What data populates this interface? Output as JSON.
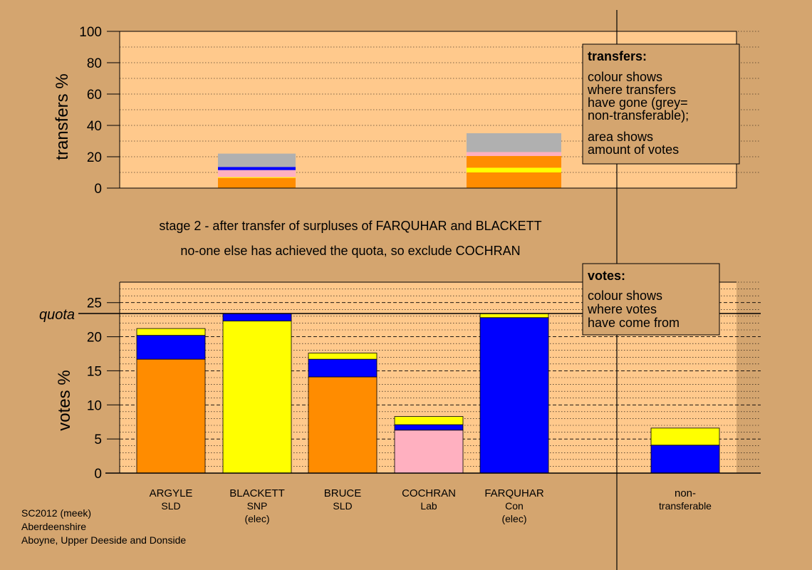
{
  "colors": {
    "background": "#d4a56f",
    "plot_bg": "#ffc98c",
    "orange": "#ff8c00",
    "yellow": "#ffff00",
    "blue": "#0000ff",
    "pink": "#ffb0c0",
    "grey": "#b0b0b0"
  },
  "stage_text": {
    "line1": "stage 2 - after transfer of surpluses of FARQUHAR and BLACKETT",
    "line2": "no-one else has achieved the quota, so exclude COCHRAN"
  },
  "footer": {
    "line1": "SC2012 (meek)",
    "line2": "Aberdeenshire",
    "line3": "Aboyne, Upper Deeside and Donside"
  },
  "transfers_legend": {
    "title": "transfers:",
    "lines": [
      "colour shows",
      "where transfers",
      "have gone (grey=",
      "non-transferable);",
      "area shows",
      "amount of votes"
    ]
  },
  "votes_legend": {
    "title": "votes:",
    "lines": [
      "colour shows",
      "where votes",
      "have come from"
    ]
  },
  "chart_data": [
    {
      "type": "bar",
      "stacked": true,
      "ylabel": "transfers %",
      "ylim": [
        0,
        100
      ],
      "yticks": [
        0,
        20,
        40,
        60,
        80,
        100
      ],
      "minor_grid_step": 10,
      "grid": true,
      "legend_position": "top-right",
      "bars": [
        {
          "source": "BLACKETT",
          "segments": [
            {
              "color": "orange",
              "value": 6.5
            },
            {
              "color": "yellow",
              "value": 0.5
            },
            {
              "color": "pink",
              "value": 4.5
            },
            {
              "color": "blue",
              "value": 2
            },
            {
              "color": "grey",
              "value": 8.5
            }
          ]
        },
        {
          "source": "FARQUHAR",
          "segments": [
            {
              "color": "orange",
              "value": 10
            },
            {
              "color": "yellow",
              "value": 3
            },
            {
              "color": "orange",
              "value": 7.5
            },
            {
              "color": "pink",
              "value": 2.5
            },
            {
              "color": "grey",
              "value": 12
            }
          ]
        }
      ]
    },
    {
      "type": "bar",
      "stacked": true,
      "ylabel": "votes %",
      "ylim": [
        0,
        28
      ],
      "yticks": [
        0,
        5,
        10,
        15,
        20,
        25
      ],
      "minor_grid_step": 1,
      "grid": true,
      "quota": 23.4,
      "quota_label": "quota",
      "legend_position": "top-right",
      "categories": [
        {
          "name": "ARGYLE",
          "party": "SLD",
          "note": ""
        },
        {
          "name": "BLACKETT",
          "party": "SNP",
          "note": "(elec)"
        },
        {
          "name": "BRUCE",
          "party": "SLD",
          "note": ""
        },
        {
          "name": "COCHRAN",
          "party": "Lab",
          "note": ""
        },
        {
          "name": "FARQUHAR",
          "party": "Con",
          "note": "(elec)"
        },
        {
          "name": "non-",
          "party": "transferable",
          "note": ""
        }
      ],
      "bars": [
        {
          "segments": [
            {
              "color": "orange",
              "value": 16.7
            },
            {
              "color": "blue",
              "value": 3.5
            },
            {
              "color": "yellow",
              "value": 1.0
            }
          ]
        },
        {
          "segments": [
            {
              "color": "yellow",
              "value": 22.3
            },
            {
              "color": "blue",
              "value": 1.1
            }
          ]
        },
        {
          "segments": [
            {
              "color": "orange",
              "value": 14.1
            },
            {
              "color": "blue",
              "value": 2.6
            },
            {
              "color": "yellow",
              "value": 0.9
            }
          ]
        },
        {
          "segments": [
            {
              "color": "pink",
              "value": 6.3
            },
            {
              "color": "blue",
              "value": 0.8
            },
            {
              "color": "yellow",
              "value": 1.2
            }
          ]
        },
        {
          "segments": [
            {
              "color": "blue",
              "value": 22.8
            },
            {
              "color": "yellow",
              "value": 0.6
            }
          ]
        },
        {
          "segments": [
            {
              "color": "blue",
              "value": 4.1
            },
            {
              "color": "yellow",
              "value": 2.5
            }
          ]
        }
      ]
    }
  ]
}
